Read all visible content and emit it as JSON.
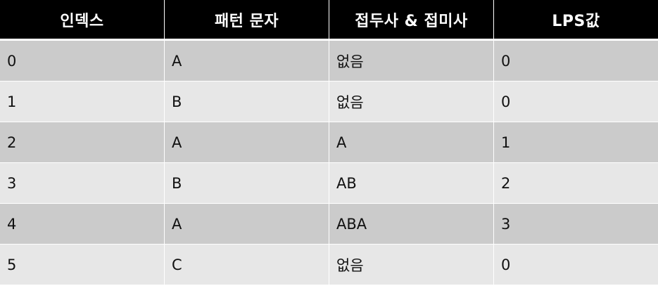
{
  "table": {
    "headers": [
      "인덱스",
      "패턴 문자",
      "접두사 & 접미사",
      "LPS값"
    ],
    "rows": [
      [
        "0",
        "A",
        "없음",
        "0"
      ],
      [
        "1",
        "B",
        "없음",
        "0"
      ],
      [
        "2",
        "A",
        "A",
        "1"
      ],
      [
        "3",
        "B",
        "AB",
        "2"
      ],
      [
        "4",
        "A",
        "ABA",
        "3"
      ],
      [
        "5",
        "C",
        "없음",
        "0"
      ]
    ]
  },
  "colors": {
    "header_bg": "#000000",
    "header_text": "#ffffff",
    "row_odd_bg": "#cbcbcb",
    "row_even_bg": "#e7e7e7",
    "grid_line": "#ffffff"
  }
}
